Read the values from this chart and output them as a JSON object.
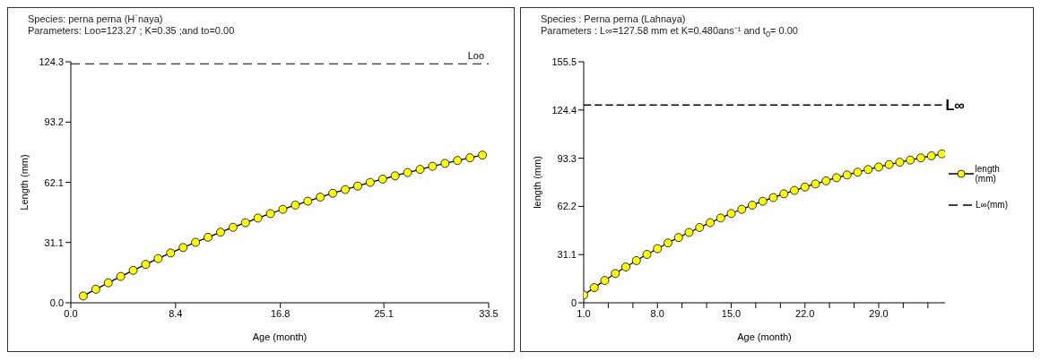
{
  "chart_data": [
    {
      "type": "line",
      "title": "Species: perna perna (H`naya)",
      "subtitle": "Parameters: Loo=123.27 ; K=0.35 ;and to=0.00",
      "xlabel": "Age (month)",
      "ylabel": "Length (mm)",
      "xlim": [
        0,
        33.5
      ],
      "xticks": [
        {
          "value": 0,
          "label": "0.0"
        },
        8.4,
        16.8,
        25.1,
        33.5
      ],
      "ylim": [
        0,
        124.3
      ],
      "yticks": [
        {
          "value": 0,
          "label": "0.0"
        },
        31.1,
        62.1,
        93.2,
        124.3
      ],
      "legend": false,
      "marker": "circle",
      "line_style": "solid",
      "ref_lines": [
        {
          "axis": "y",
          "value": 123.27,
          "label": "Loo",
          "line_style": "dashed",
          "color": "#000000"
        }
      ],
      "series": [
        {
          "color": "#ffff00",
          "x": [
            1,
            2,
            3,
            4,
            5,
            6,
            7,
            8,
            9,
            10,
            11,
            12,
            13,
            14,
            15,
            16,
            17,
            18,
            19,
            20,
            21,
            22,
            23,
            24,
            25,
            26,
            27,
            28,
            29,
            30,
            31,
            32,
            33
          ],
          "values": [
            3.5,
            7.0,
            10.3,
            13.6,
            16.7,
            19.8,
            22.8,
            25.7,
            28.5,
            31.2,
            33.8,
            36.4,
            38.9,
            41.3,
            43.7,
            46.0,
            48.2,
            50.4,
            52.4,
            54.5,
            56.5,
            58.4,
            60.2,
            62.1,
            63.8,
            65.5,
            67.2,
            68.8,
            70.4,
            71.9,
            73.4,
            74.8,
            76.2
          ]
        }
      ]
    },
    {
      "type": "line",
      "title": "Species : Perna perna (Lahnaya)",
      "subtitle": "Parameters : L∞=127.58 mm et K=0.480ans⁻¹ and t$_{0}$= 0.00",
      "xlabel": "Age (month)",
      "ylabel": "length (mm)",
      "xlim": [
        1,
        35.3
      ],
      "xticks": [
        {
          "value": 1,
          "label": "1.0"
        },
        {
          "value": 3.33,
          "label": null
        },
        {
          "value": 5.67,
          "label": null
        },
        {
          "value": 8,
          "label": "8.0"
        },
        {
          "value": 10.33,
          "label": null
        },
        {
          "value": 12.67,
          "label": null
        },
        {
          "value": 15,
          "label": "15.0"
        },
        {
          "value": 17.33,
          "label": null
        },
        {
          "value": 19.67,
          "label": null
        },
        {
          "value": 22,
          "label": "22.0"
        },
        {
          "value": 24.33,
          "label": null
        },
        {
          "value": 26.67,
          "label": null
        },
        {
          "value": 29,
          "label": "29.0"
        },
        {
          "value": 31.33,
          "label": null
        },
        {
          "value": 33.67,
          "label": null
        }
      ],
      "ylim": [
        0,
        155.5
      ],
      "yticks": [
        0,
        31.1,
        62.2,
        93.3,
        124.4,
        155.5
      ],
      "legend": "right",
      "marker": "circle",
      "line_style": "solid",
      "annotations": [
        {
          "text": "L∞",
          "x": 35,
          "y": 127.58
        }
      ],
      "series": [
        {
          "name": "length (mm)",
          "color": "#ffff00",
          "x": [
            1,
            2,
            3,
            4,
            5,
            6,
            7,
            8,
            9,
            10,
            11,
            12,
            13,
            14,
            15,
            16,
            17,
            18,
            19,
            20,
            21,
            22,
            23,
            24,
            25,
            26,
            27,
            28,
            29,
            30,
            31,
            32,
            33,
            34,
            35
          ],
          "values": [
            5.0,
            9.8,
            14.4,
            18.9,
            23.1,
            27.2,
            31.2,
            34.9,
            38.6,
            42.1,
            45.4,
            48.6,
            51.7,
            54.7,
            57.6,
            60.3,
            63.0,
            65.5,
            67.9,
            70.3,
            72.5,
            74.7,
            76.7,
            78.7,
            80.7,
            82.5,
            84.3,
            86.0,
            87.6,
            89.2,
            90.7,
            92.1,
            93.5,
            94.8,
            96.1
          ]
        },
        {
          "name": "L∞(mm)",
          "color": "#000000",
          "marker": "none",
          "line_style": "dashed",
          "x": [
            1,
            35
          ],
          "values": [
            127.6,
            127.6
          ]
        }
      ]
    }
  ]
}
